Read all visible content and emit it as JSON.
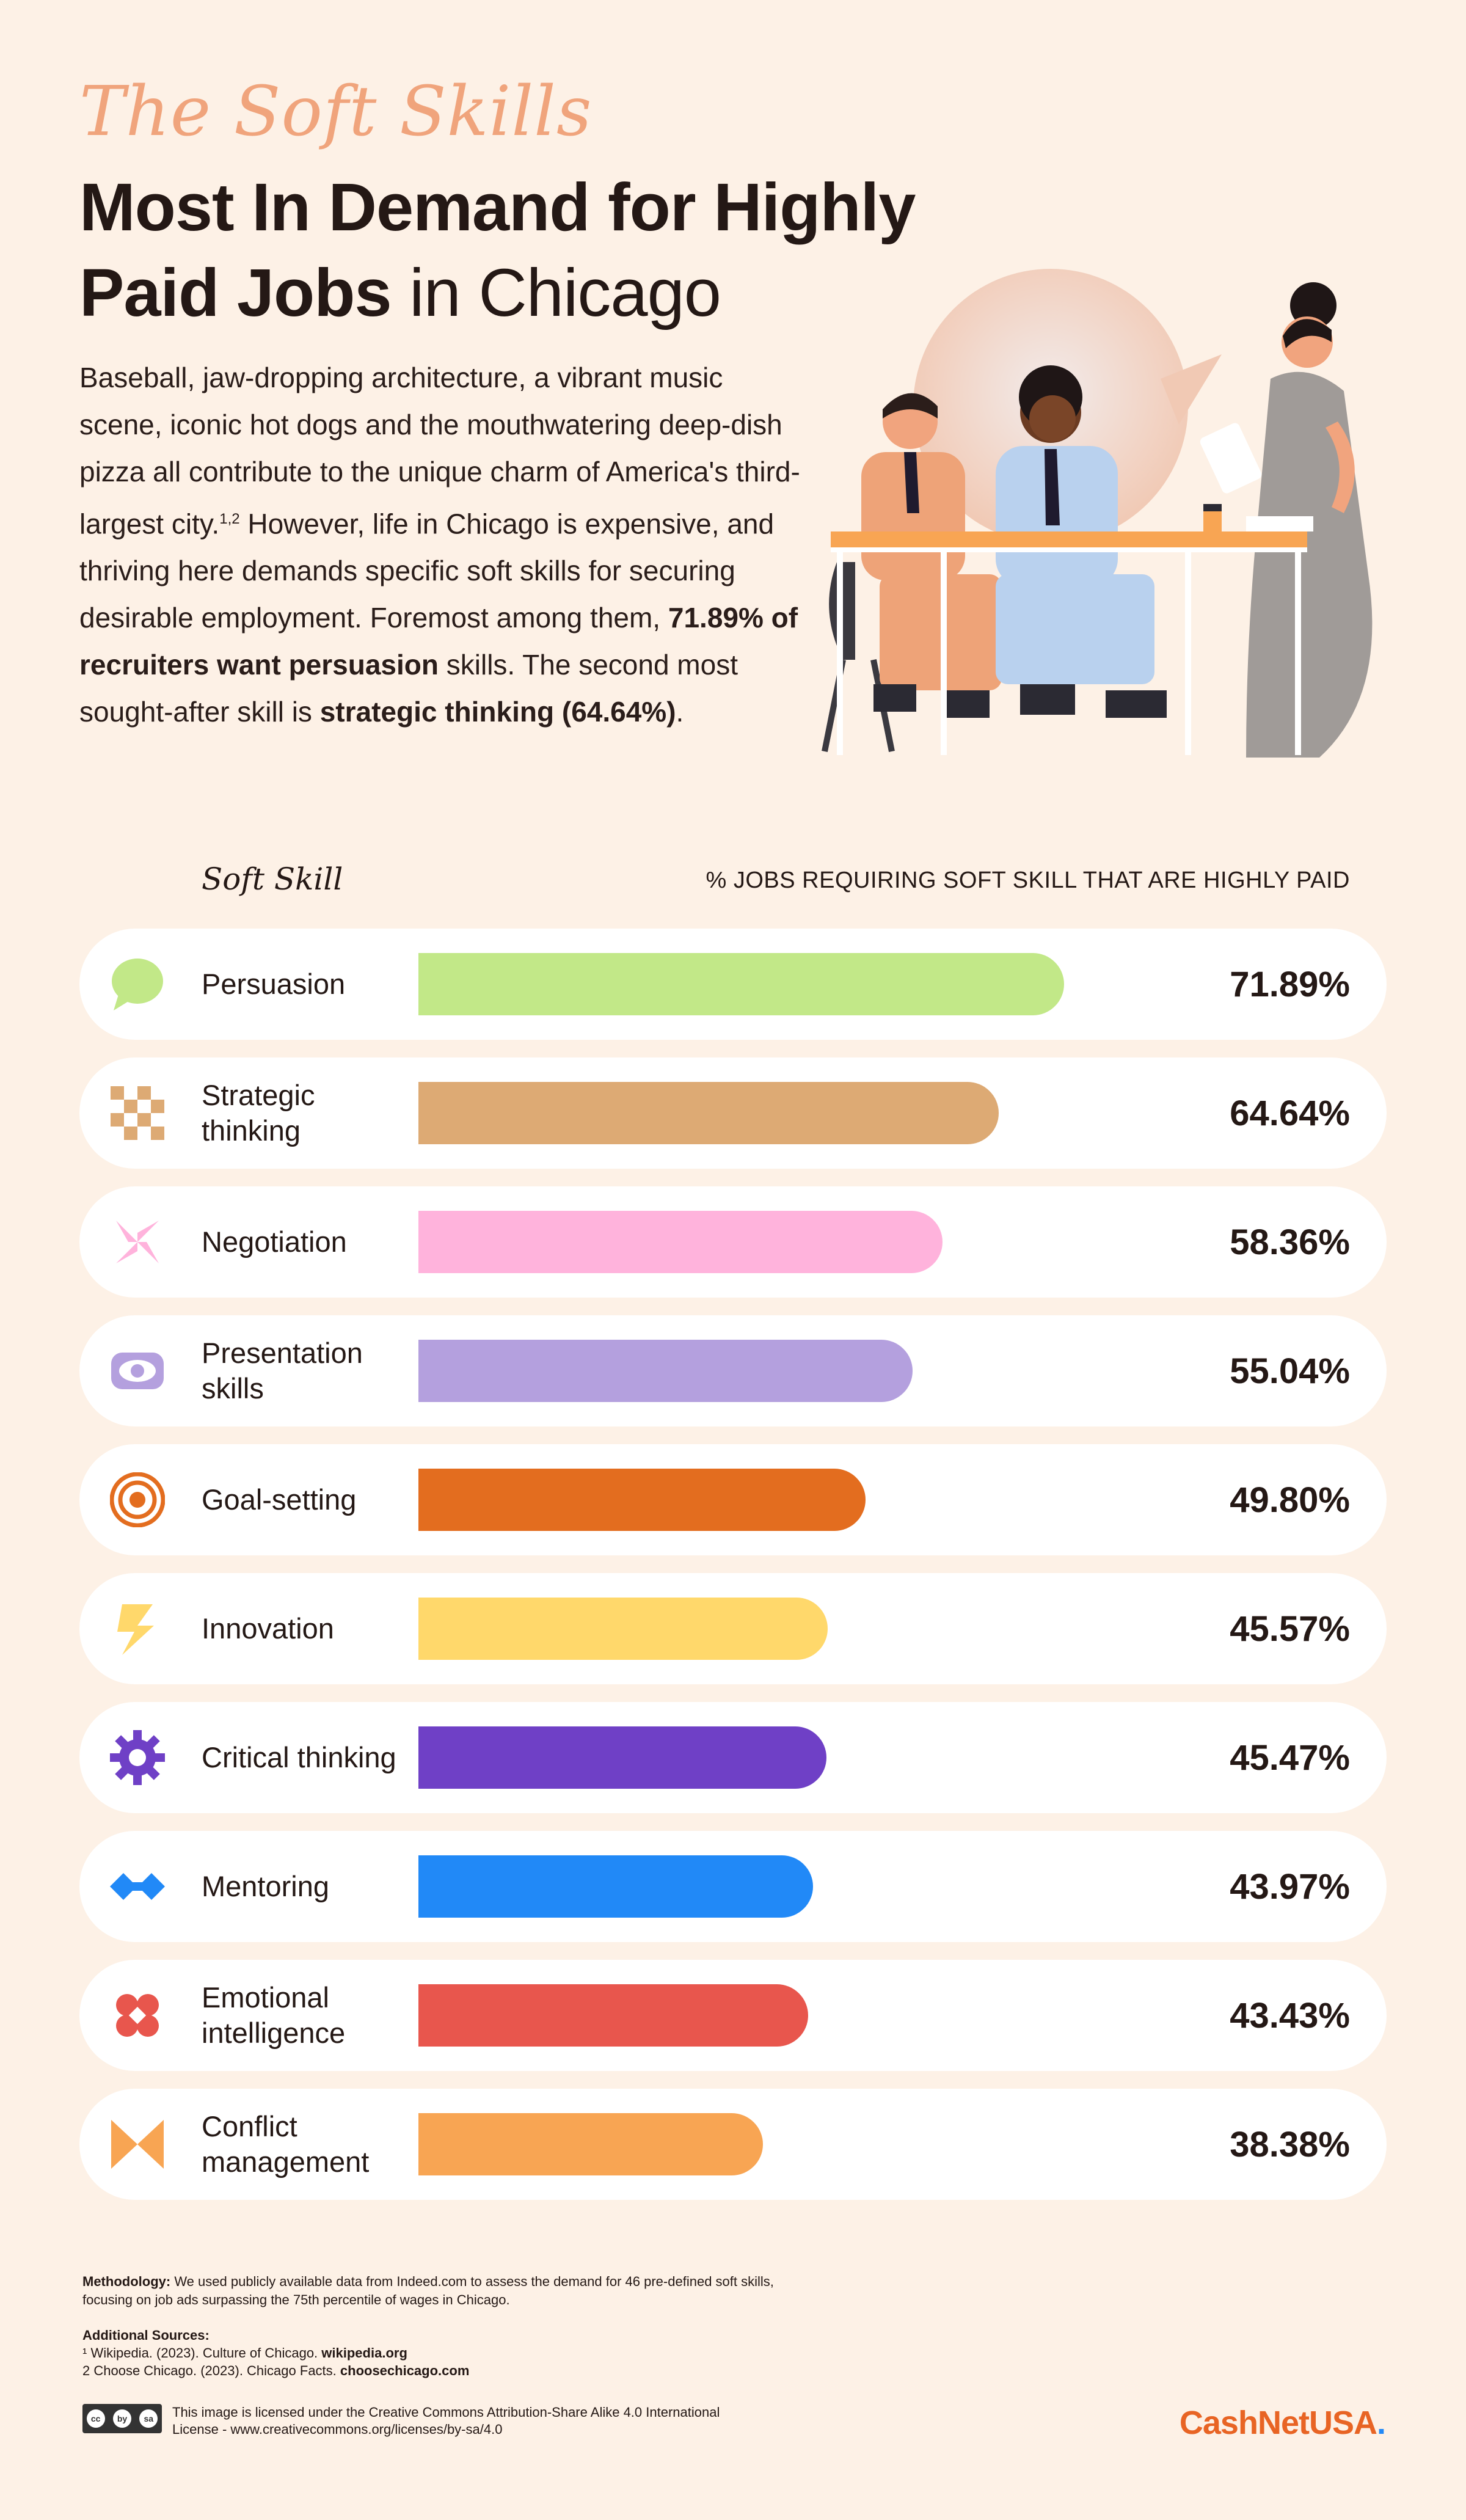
{
  "header": {
    "script_title": "The Soft Skills",
    "headline_bold_1": "Most In Demand for Highly",
    "headline_bold_2": "Paid Jobs",
    "headline_light": " in Chicago"
  },
  "intro": {
    "p1": "Baseball, jaw-dropping architecture, a vibrant music scene, iconic hot dogs and the mouthwatering deep-dish pizza all contribute to the unique charm of America's third-largest city.",
    "sup": "1,2",
    "p2": " However, life in Chicago is expensive, and thriving here demands specific soft skills for securing desirable employment. Foremost among them, ",
    "bold1": "71.89% of recruiters want persuasion",
    "p3": " skills. The second most sought-after skill is ",
    "bold2": "strategic thinking (64.64%)",
    "p4": "."
  },
  "columns": {
    "left": "Soft Skill",
    "right": "% JOBS REQUIRING SOFT SKILL THAT ARE HIGHLY PAID"
  },
  "chart_data": {
    "type": "bar",
    "orientation": "horizontal",
    "categories": [
      "Persuasion",
      "Strategic thinking",
      "Negotiation",
      "Presentation skills",
      "Goal-setting",
      "Innovation",
      "Critical thinking",
      "Mentoring",
      "Emotional intelligence",
      "Conflict management"
    ],
    "values": [
      71.89,
      64.64,
      58.36,
      55.04,
      49.8,
      45.57,
      45.47,
      43.97,
      43.43,
      38.38
    ],
    "value_labels": [
      "71.89%",
      "64.64%",
      "58.36%",
      "55.04%",
      "49.80%",
      "45.57%",
      "45.47%",
      "43.97%",
      "43.43%",
      "38.38%"
    ],
    "colors": [
      "#c2e888",
      "#ddaa74",
      "#ffb3dc",
      "#b4a0de",
      "#e36d1f",
      "#ffd86b",
      "#6f40c6",
      "#2189f7",
      "#e8564d",
      "#f8a553"
    ],
    "icons": [
      "speech-bubble-icon",
      "checkerboard-icon",
      "pinwheel-icon",
      "eye-icon",
      "target-icon",
      "lightning-icon",
      "gear-icon",
      "diamond-link-icon",
      "heart-cluster-icon",
      "bowtie-icon"
    ],
    "xlabel": "% JOBS REQUIRING SOFT SKILL THAT ARE HIGHLY PAID",
    "ylabel": "Soft Skill",
    "xlim": [
      0,
      100
    ],
    "grid": false,
    "legend": "none"
  },
  "footer": {
    "method_label": "Methodology:",
    "method_text": " We used publicly available data from Indeed.com to assess the demand for 46 pre-defined soft skills, focusing on job ads surpassing the 75th percentile of wages in Chicago.",
    "sources_label": "Additional Sources:",
    "source1": "¹ Wikipedia. (2023). Culture of Chicago. ",
    "source1_link": "wikipedia.org",
    "source2": "2 Choose Chicago. (2023). Chicago Facts. ",
    "source2_link": "choosechicago.com",
    "license_text": "This image is licensed under the Creative Commons Attribution-Share Alike 4.0 International License - www.creativecommons.org/licenses/by-sa/4.0",
    "badge": [
      "cc",
      "by",
      "sa"
    ],
    "brand_1": "CashNet",
    "brand_2": "USA",
    "brand_dot": "."
  }
}
